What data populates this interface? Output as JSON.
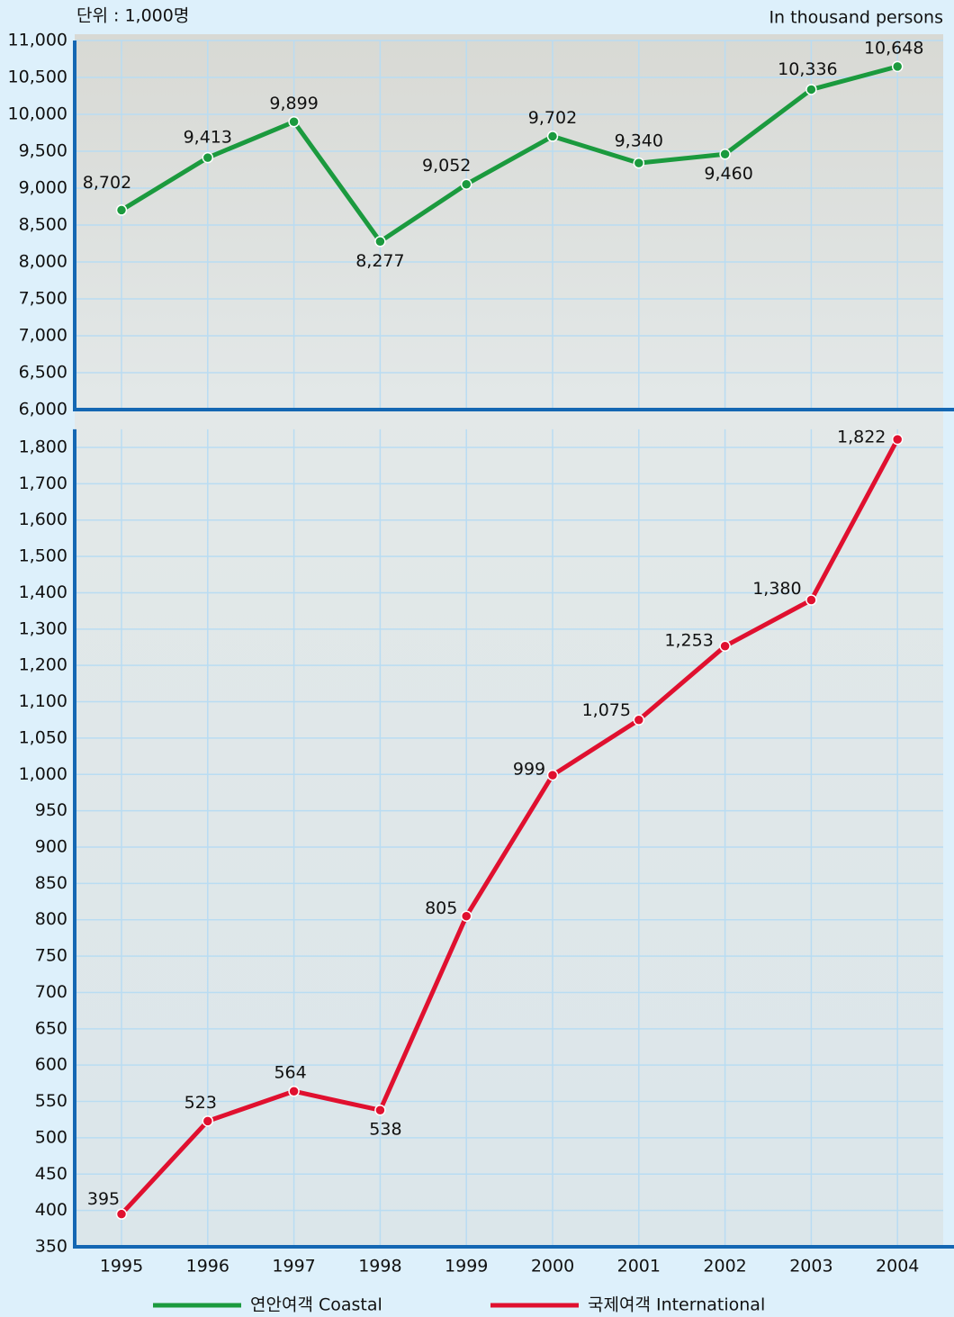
{
  "chart_data": [
    {
      "type": "line",
      "subtitle": "단위 : 1,000명",
      "y_label": "In thousand persons",
      "series": [
        {
          "name": "연안여객 Coastal",
          "color": "#1b9a3e",
          "values": [
            8702,
            9413,
            9899,
            8277,
            9052,
            9702,
            9340,
            9460,
            10336,
            10648
          ],
          "value_labels": [
            "8,702",
            "9,413",
            "9,899",
            "8,277",
            "9,052",
            "9,702",
            "9,340",
            "9,460",
            "10,336",
            "10,648"
          ]
        }
      ],
      "ylim": [
        6000,
        11000
      ],
      "yticks": [
        {
          "value": 6000,
          "label": "6,000"
        },
        {
          "value": 6500,
          "label": "6,500"
        },
        {
          "value": 7000,
          "label": "7,000"
        },
        {
          "value": 7500,
          "label": "7,500"
        },
        {
          "value": 8000,
          "label": "8,000"
        },
        {
          "value": 8500,
          "label": "8,500"
        },
        {
          "value": 9000,
          "label": "9,000"
        },
        {
          "value": 9500,
          "label": "9,500"
        },
        {
          "value": 10000,
          "label": "10,000"
        },
        {
          "value": 10500,
          "label": "10,500"
        },
        {
          "value": 11000,
          "label": "11,000"
        }
      ],
      "grid": true
    },
    {
      "type": "line",
      "categories": [
        "1995",
        "1996",
        "1997",
        "1998",
        "1999",
        "2000",
        "2001",
        "2002",
        "2003",
        "2004"
      ],
      "series": [
        {
          "name": "국제여객 International",
          "color": "#e0102f",
          "values": [
            395,
            523,
            564,
            538,
            805,
            999,
            1075,
            1253,
            1380,
            1822
          ],
          "value_labels": [
            "395",
            "523",
            "564",
            "538",
            "805",
            "999",
            "1,075",
            "1,253",
            "1,380",
            "1,822"
          ]
        }
      ],
      "ylim": [
        350,
        1850
      ],
      "yticks": [
        350,
        400,
        450,
        500,
        550,
        600,
        650,
        700,
        750,
        800,
        850,
        900,
        950,
        {
          "value": 1000,
          "label": "1,000"
        },
        {
          "value": 1050,
          "label": "1,050"
        },
        {
          "value": 1100,
          "label": "1,100"
        },
        {
          "value": 1200,
          "label": "1,200"
        },
        {
          "value": 1300,
          "label": "1,300"
        },
        {
          "value": 1400,
          "label": "1,400"
        },
        {
          "value": 1500,
          "label": "1,500"
        },
        {
          "value": 1600,
          "label": "1,600"
        },
        {
          "value": 1700,
          "label": "1,700"
        },
        {
          "value": 1800,
          "label": "1,800"
        }
      ],
      "grid": true,
      "legend": "bottom"
    }
  ]
}
